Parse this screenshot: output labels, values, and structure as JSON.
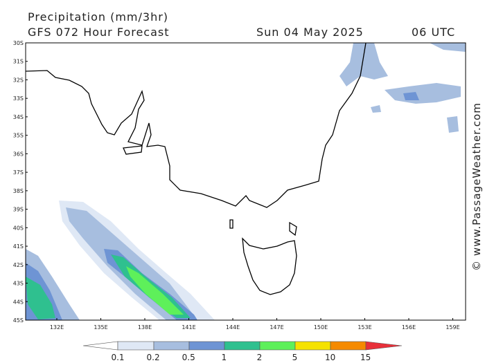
{
  "header": {
    "title": "Precipitation (mm/3hr)",
    "model": "GFS 072 Hour Forecast",
    "date": "Sun 04 May 2025",
    "time": "06 UTC"
  },
  "map": {
    "lat_labels": [
      "30S",
      "31S",
      "32S",
      "33S",
      "34S",
      "35S",
      "36S",
      "37S",
      "38S",
      "39S",
      "40S",
      "41S",
      "42S",
      "43S",
      "44S",
      "45S"
    ],
    "lon_labels": [
      "132E",
      "135E",
      "138E",
      "141E",
      "144E",
      "147E",
      "150E",
      "153E",
      "156E",
      "159E"
    ]
  },
  "legend": {
    "labels": [
      "0.1",
      "0.2",
      "0.5",
      "1",
      "2",
      "5",
      "10",
      "15"
    ]
  },
  "watermark": "© www.PassageWeather.com"
}
